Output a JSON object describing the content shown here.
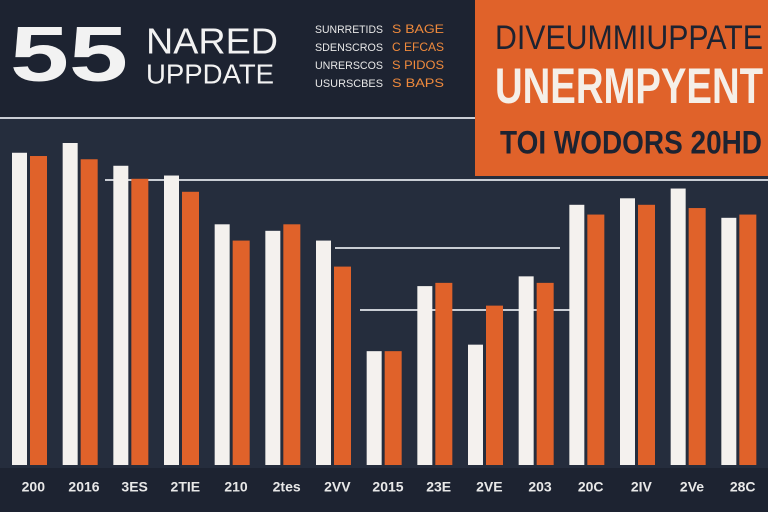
{
  "chart_data": {
    "type": "bar",
    "title": "UNERMPYENT",
    "overline": "DIVEUMMIUPPATE",
    "subtitle": "TOI WODORS 20HD",
    "badge": "55",
    "badge_text": [
      "NARED",
      "UPPDATE"
    ],
    "legend_rows": [
      [
        "SUNRRETIDS",
        "S BAGE"
      ],
      [
        "SDENSCROS",
        "C EFCAS"
      ],
      [
        "UNRERSCOS",
        "S PIDOS"
      ],
      [
        "USURSCBES",
        "S BAPS"
      ]
    ],
    "categories": [
      "200",
      "2016",
      "3ES",
      "2TIE",
      "210",
      "2tes",
      "2VV",
      "2015",
      "23E",
      "2VE",
      "203",
      "20C",
      "2IV",
      "2Ve",
      "28C"
    ],
    "series": [
      {
        "color": "#f4f1ee",
        "values": [
          96,
          99,
          92,
          89,
          74,
          72,
          69,
          35,
          55,
          37,
          58,
          80,
          82,
          85,
          76
        ]
      },
      {
        "color": "#e0622a",
        "values": [
          95,
          94,
          88,
          84,
          69,
          74,
          61,
          35,
          56,
          49,
          56,
          77,
          80,
          79,
          77
        ]
      }
    ]
  }
}
